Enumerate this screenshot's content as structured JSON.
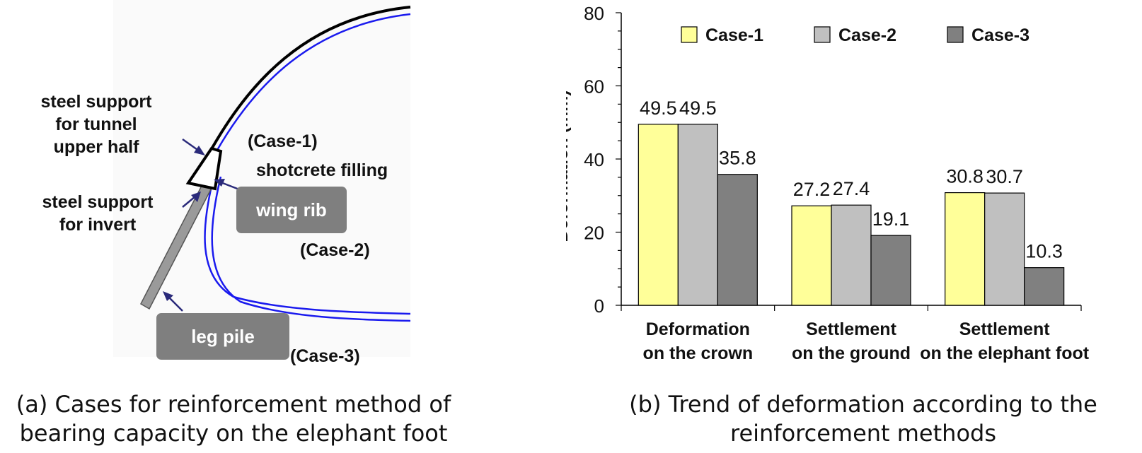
{
  "diagram": {
    "labels": {
      "steel_support_upper": [
        "steel support",
        "for tunnel",
        "upper half"
      ],
      "steel_support_invert": [
        "steel support",
        "for invert"
      ],
      "case1": "(Case-1)",
      "shotcrete_filling": "shotcrete filling",
      "wing_rib": "wing rib",
      "case2": "(Case-2)",
      "leg_pile": "leg pile",
      "case3": "(Case-3)"
    },
    "colors": {
      "liner": "#0000ee",
      "support": "#000000",
      "pile": "#9a9a9a",
      "callout": "#7f7f7f"
    }
  },
  "captions": {
    "a": [
      "(a) Cases for reinforcement method of",
      "bearing capacity on the elephant foot"
    ],
    "b": [
      "(b) Trend of deformation according to the",
      "reinforcement methods"
    ]
  },
  "chart_data": {
    "type": "bar",
    "categories": [
      [
        "Deformation",
        "on the crown"
      ],
      [
        "Settlement",
        "on the ground"
      ],
      [
        "Settlement",
        "on the elephant foot"
      ]
    ],
    "series": [
      {
        "name": "Case-1",
        "color": "#ffff99",
        "values": [
          49.5,
          27.2,
          30.8
        ],
        "labels": [
          "49.5",
          "27.2",
          "30.8"
        ]
      },
      {
        "name": "Case-2",
        "color": "#c0c0c0",
        "values": [
          49.5,
          27.4,
          30.7
        ],
        "labels": [
          "49.5",
          "27.4",
          "30.7"
        ]
      },
      {
        "name": "Case-3",
        "color": "#808080",
        "values": [
          35.8,
          19.1,
          10.3
        ],
        "labels": [
          "35.8",
          "19.1",
          "10.3"
        ]
      }
    ],
    "xlabel": "",
    "ylabel": "Deformation (mm)",
    "ylim": [
      0,
      80
    ],
    "yticks": [
      0,
      20,
      40,
      60,
      80
    ],
    "grid": false,
    "legend": "top"
  }
}
